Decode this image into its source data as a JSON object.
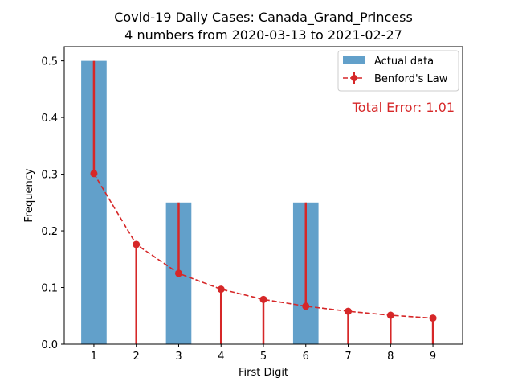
{
  "chart_data": {
    "type": "bar",
    "title_line1": "Covid-19 Daily Cases: Canada_Grand_Princess",
    "title_line2": "4 numbers from 2020-03-13 to 2021-02-27",
    "xlabel": "First Digit",
    "ylabel": "Frequency",
    "categories": [
      "1",
      "2",
      "3",
      "4",
      "5",
      "6",
      "7",
      "8",
      "9"
    ],
    "x": [
      1,
      2,
      3,
      4,
      5,
      6,
      7,
      8,
      9
    ],
    "xlim": [
      0.3,
      9.7
    ],
    "ylim": [
      0,
      0.525
    ],
    "yticks": [
      0.0,
      0.1,
      0.2,
      0.3,
      0.4,
      0.5
    ],
    "ytick_labels": [
      "0.0",
      "0.1",
      "0.2",
      "0.3",
      "0.4",
      "0.5"
    ],
    "series": [
      {
        "name": "Actual data",
        "type": "bar",
        "values": [
          0.5,
          0,
          0.25,
          0,
          0,
          0.25,
          0,
          0,
          0
        ],
        "color": "#1f77b4"
      },
      {
        "name": "Benford's Law",
        "type": "line",
        "style": "dashed-with-markers-and-error-lines",
        "values": [
          0.301,
          0.176,
          0.125,
          0.097,
          0.079,
          0.067,
          0.058,
          0.051,
          0.046
        ],
        "color": "#d62728"
      }
    ],
    "annotation": "Total Error: 1.01",
    "annotation_color": "#d62728",
    "legend_position": "top-right",
    "grid": false
  }
}
